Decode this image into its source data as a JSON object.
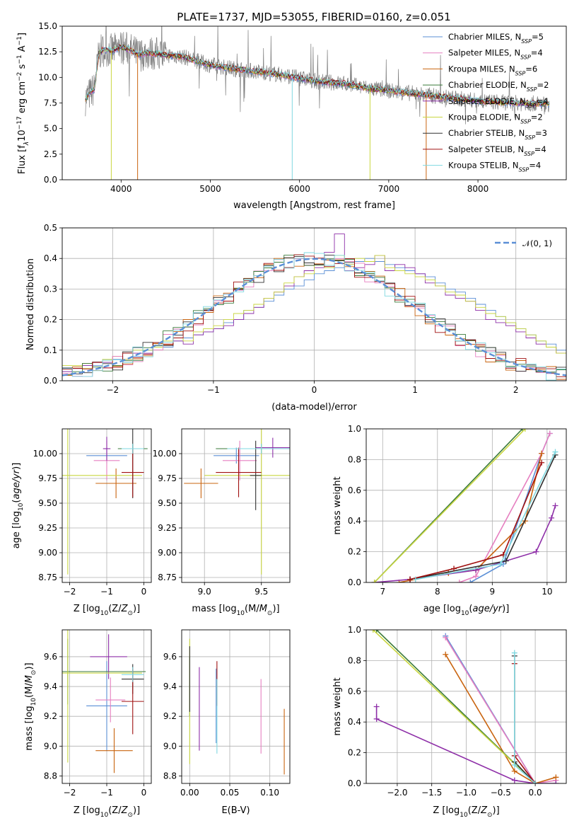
{
  "figure": {
    "title": "PLATE=1737, MJD=53055, FIBERID=0160, z=0.051",
    "spectrum_xlabel": "wavelength [Angstrom, rest frame]",
    "residual_xlabel": "(data-model)/error",
    "residual_ylabel": "Normed distribution"
  },
  "colors": {
    "data": "#7f7f7f",
    "normal_curve": "#5b8fd6",
    "grid": "#b0b0b0"
  },
  "chart_data": [
    {
      "type": "line",
      "id": "spectrum",
      "title": "PLATE=1737, MJD=53055, FIBERID=0160, z=0.051",
      "xlabel": "wavelength [Angstrom, rest frame]",
      "xlim": [
        3340,
        8990
      ],
      "ylim": [
        0,
        15
      ],
      "xticks": [
        4000,
        5000,
        6000,
        7000,
        8000
      ],
      "yticks": [
        "0.0",
        "2.5",
        "5.0",
        "7.5",
        "10.0",
        "12.5",
        "15.0"
      ],
      "grid": false,
      "legend_position": "top-right",
      "series": [
        {
          "name": "Chabrier MILES, N",
          "nssp": "5",
          "color": "#5b8fd6"
        },
        {
          "name": "Salpeter MILES, N",
          "nssp": "4",
          "color": "#e67fc0"
        },
        {
          "name": "Kroupa MILES, N",
          "nssp": "6",
          "color": "#c9640f"
        },
        {
          "name": "Chabrier ELODIE, N",
          "nssp": "2",
          "color": "#3a7a3a"
        },
        {
          "name": "Salpeter ELODIE, N",
          "nssp": "4",
          "color": "#8e2fa8"
        },
        {
          "name": "Kroupa ELODIE, N",
          "nssp": "2",
          "color": "#c9d640"
        },
        {
          "name": "Chabrier STELIB, N",
          "nssp": "3",
          "color": "#303030"
        },
        {
          "name": "Salpeter STELIB, N",
          "nssp": "4",
          "color": "#a01010"
        },
        {
          "name": "Kroupa STELIB, N",
          "nssp": "4",
          "color": "#7fd8e0"
        }
      ],
      "envelope": {
        "x": [
          3600,
          3700,
          3750,
          3800,
          3900,
          4000,
          4100,
          4200,
          4300,
          4400,
          4500,
          4700,
          5000,
          5300,
          5600,
          5900,
          6200,
          6500,
          6800,
          7000,
          7300,
          7600,
          8000,
          8400,
          8800
        ],
        "y": [
          7.9,
          8.9,
          12.3,
          12.7,
          12.6,
          13.0,
          12.7,
          12.2,
          12.4,
          12.3,
          12.2,
          12.0,
          11.2,
          10.8,
          10.5,
          10.1,
          9.6,
          9.4,
          8.9,
          8.7,
          8.4,
          8.1,
          7.7,
          7.5,
          7.4
        ]
      },
      "dips": [
        {
          "x": 3890,
          "y": 0.0
        },
        {
          "x": 4185,
          "y": 0.0
        },
        {
          "x": 5918,
          "y": 0.0
        },
        {
          "x": 6790,
          "y": 0.0
        },
        {
          "x": 7420,
          "y": 0.0
        }
      ]
    },
    {
      "type": "line",
      "id": "residuals",
      "xlabel": "(data-model)/error",
      "ylabel": "Normed distribution",
      "xlim": [
        -2.5,
        2.5
      ],
      "ylim": [
        0,
        0.5
      ],
      "xticks": [
        "−2",
        "−1",
        "0",
        "1",
        "2"
      ],
      "yticks": [
        "0.0",
        "0.1",
        "0.2",
        "0.3",
        "0.4",
        "0.5"
      ],
      "grid": true,
      "legend_position": "top-right",
      "legend_label": "𝒩(0, 1)",
      "normal_curve": {
        "mu": 0,
        "sigma": 1
      },
      "histogram_bin_width": 0.1,
      "histograms": [
        {
          "color": "#5b8fd6",
          "values": [
            0.04,
            0.04,
            0.05,
            0.05,
            0.06,
            0.07,
            0.06,
            0.08,
            0.1,
            0.11,
            0.11,
            0.13,
            0.14,
            0.15,
            0.16,
            0.17,
            0.19,
            0.2,
            0.23,
            0.24,
            0.26,
            0.28,
            0.3,
            0.31,
            0.33,
            0.35,
            0.36,
            0.37,
            0.38,
            0.39,
            0.4,
            0.39,
            0.38,
            0.37,
            0.36,
            0.35,
            0.34,
            0.32,
            0.3,
            0.29,
            0.27,
            0.25,
            0.23,
            0.21,
            0.19,
            0.17,
            0.15,
            0.13,
            0.12,
            0.1
          ]
        },
        {
          "color": "#8e2fa8",
          "values": [
            0.03,
            0.04,
            0.05,
            0.06,
            0.06,
            0.08,
            0.07,
            0.09,
            0.09,
            0.11,
            0.12,
            0.13,
            0.12,
            0.15,
            0.16,
            0.17,
            0.18,
            0.2,
            0.22,
            0.24,
            0.27,
            0.29,
            0.31,
            0.34,
            0.36,
            0.37,
            0.42,
            0.48,
            0.36,
            0.37,
            0.38,
            0.41,
            0.36,
            0.38,
            0.37,
            0.35,
            0.32,
            0.31,
            0.28,
            0.27,
            0.26,
            0.23,
            0.2,
            0.19,
            0.18,
            0.16,
            0.14,
            0.12,
            0.11,
            0.09
          ]
        },
        {
          "color": "#c9d640",
          "values": [
            0.05,
            0.05,
            0.04,
            0.06,
            0.07,
            0.08,
            0.07,
            0.1,
            0.1,
            0.11,
            0.13,
            0.14,
            0.13,
            0.16,
            0.17,
            0.18,
            0.2,
            0.22,
            0.23,
            0.25,
            0.27,
            0.29,
            0.32,
            0.34,
            0.35,
            0.38,
            0.37,
            0.41,
            0.38,
            0.4,
            0.39,
            0.41,
            0.37,
            0.36,
            0.35,
            0.34,
            0.33,
            0.31,
            0.29,
            0.28,
            0.26,
            0.24,
            0.22,
            0.21,
            0.19,
            0.17,
            0.15,
            0.13,
            0.11,
            0.09
          ]
        }
      ]
    },
    {
      "type": "scatter",
      "id": "age_vs_Z",
      "xlabel": "Z [log10(Z/Z⊙)]",
      "ylabel": "age  [log10(age/yr)]",
      "xlim": [
        -2.2,
        0.2
      ],
      "ylim": [
        8.7,
        10.25
      ],
      "xticks": [
        "−2",
        "−1",
        "0"
      ],
      "yticks": [
        "8.75",
        "9.00",
        "9.25",
        "9.50",
        "9.75",
        "10.00"
      ],
      "grid": true,
      "points": [
        {
          "x": -1.0,
          "y": 9.98,
          "xerr": 0.55,
          "yerr": 0.08,
          "color": "#5b8fd6"
        },
        {
          "x": -1.0,
          "y": 9.93,
          "xerr": 0.35,
          "yerr": 0.2,
          "color": "#e67fc0"
        },
        {
          "x": -0.75,
          "y": 9.7,
          "xerr": 0.55,
          "yerr": 0.15,
          "color": "#c9640f"
        },
        {
          "x": -0.3,
          "y": 10.05,
          "xerr": 0.4,
          "yerr": 0.05,
          "color": "#3a7a3a"
        },
        {
          "x": -1.0,
          "y": 10.05,
          "xerr": 0.1,
          "yerr": 0.12,
          "color": "#8e2fa8"
        },
        {
          "x": -2.05,
          "y": 9.78,
          "xerr": 2.0,
          "yerr": 1.0,
          "color": "#c9d640"
        },
        {
          "x": -0.3,
          "y": 10.05,
          "xerr": 0.3,
          "yerr": 0.5,
          "color": "#303030"
        },
        {
          "x": -0.3,
          "y": 9.81,
          "xerr": 0.3,
          "yerr": 0.25,
          "color": "#a01010"
        },
        {
          "x": -0.3,
          "y": 10.05,
          "xerr": 0.3,
          "yerr": 0.05,
          "color": "#7fd8e0"
        }
      ]
    },
    {
      "type": "scatter",
      "id": "age_vs_mass",
      "xlabel": "mass [log10(M/M⊙)]",
      "xlim": [
        8.8,
        9.75
      ],
      "ylim": [
        8.7,
        10.25
      ],
      "xticks": [
        "9.0",
        "9.5"
      ],
      "yticks": [
        "8.75",
        "9.00",
        "9.25",
        "9.50",
        "9.75",
        "10.00"
      ],
      "grid": true,
      "points": [
        {
          "x": 9.28,
          "y": 9.98,
          "xerr": 0.2,
          "yerr": 0.08,
          "color": "#5b8fd6"
        },
        {
          "x": 9.31,
          "y": 9.93,
          "xerr": 0.15,
          "yerr": 0.2,
          "color": "#e67fc0"
        },
        {
          "x": 8.97,
          "y": 9.7,
          "xerr": 0.15,
          "yerr": 0.15,
          "color": "#c9640f"
        },
        {
          "x": 9.5,
          "y": 10.05,
          "xerr": 0.4,
          "yerr": 0.05,
          "color": "#3a7a3a"
        },
        {
          "x": 9.6,
          "y": 10.06,
          "xerr": 0.15,
          "yerr": 0.1,
          "color": "#8e2fa8"
        },
        {
          "x": 9.5,
          "y": 9.78,
          "xerr": 0.5,
          "yerr": 1.0,
          "color": "#c9d640"
        },
        {
          "x": 9.45,
          "y": 9.78,
          "xerr": 0.05,
          "yerr": 0.35,
          "color": "#303030"
        },
        {
          "x": 9.3,
          "y": 9.81,
          "xerr": 0.2,
          "yerr": 0.25,
          "color": "#a01010"
        },
        {
          "x": 9.5,
          "y": 10.05,
          "xerr": 0.3,
          "yerr": 0.05,
          "color": "#7fd8e0"
        }
      ]
    },
    {
      "type": "line",
      "id": "mass_weight_vs_age",
      "xlabel": "age  [log10(age/yr)]",
      "ylabel": "mass weight",
      "xlim": [
        6.7,
        10.35
      ],
      "ylim": [
        0,
        1
      ],
      "xticks": [
        "7",
        "8",
        "9",
        "10"
      ],
      "yticks": [
        "0.0",
        "0.2",
        "0.4",
        "0.6",
        "0.8",
        "1.0"
      ],
      "grid": true,
      "series": [
        {
          "color": "#5b8fd6",
          "x": [
            8.6,
            9.2,
            9.9,
            10.05
          ],
          "y": [
            0.0,
            0.12,
            0.84,
            0.97
          ]
        },
        {
          "color": "#e67fc0",
          "x": [
            8.4,
            8.7,
            9.9,
            10.05
          ],
          "y": [
            0.0,
            0.04,
            0.84,
            0.97
          ]
        },
        {
          "color": "#c9640f",
          "x": [
            7.3,
            8.2,
            8.7,
            9.6,
            9.9
          ],
          "y": [
            0.0,
            0.06,
            0.08,
            0.4,
            0.84
          ]
        },
        {
          "color": "#3a7a3a",
          "x": [
            6.85,
            9.55
          ],
          "y": [
            0.0,
            1.0
          ]
        },
        {
          "color": "#8e2fa8",
          "x": [
            6.85,
            7.5,
            8.7,
            9.8,
            10.08,
            10.15
          ],
          "y": [
            0.0,
            0.02,
            0.08,
            0.2,
            0.42,
            0.5
          ]
        },
        {
          "color": "#c9d640",
          "x": [
            6.85,
            9.6
          ],
          "y": [
            0.0,
            1.0
          ]
        },
        {
          "color": "#303030",
          "x": [
            7.5,
            9.25,
            10.15
          ],
          "y": [
            0.02,
            0.14,
            0.83
          ]
        },
        {
          "color": "#a01010",
          "x": [
            7.5,
            8.3,
            9.2,
            9.9
          ],
          "y": [
            0.02,
            0.09,
            0.18,
            0.78
          ]
        },
        {
          "color": "#7fd8e0",
          "x": [
            7.6,
            9.15,
            10.15
          ],
          "y": [
            0.02,
            0.12,
            0.85
          ]
        }
      ]
    },
    {
      "type": "scatter",
      "id": "mass_vs_Z",
      "xlabel": "Z [log10(Z/Z⊙)]",
      "ylabel": "mass [log10(M/M⊙)]",
      "xlim": [
        -2.2,
        0.2
      ],
      "ylim": [
        8.75,
        9.78
      ],
      "xticks": [
        "−2",
        "−1",
        "0"
      ],
      "yticks": [
        "8.8",
        "9.0",
        "9.2",
        "9.4",
        "9.6"
      ],
      "grid": true,
      "points": [
        {
          "x": -1.0,
          "y": 9.27,
          "xerr": 0.55,
          "yerr": 0.3,
          "color": "#5b8fd6"
        },
        {
          "x": -0.9,
          "y": 9.31,
          "xerr": 0.4,
          "yerr": 0.15,
          "color": "#e67fc0"
        },
        {
          "x": -0.8,
          "y": 8.97,
          "xerr": 0.5,
          "yerr": 0.15,
          "color": "#c9640f"
        },
        {
          "x": -2.05,
          "y": 9.5,
          "xerr": 2.1,
          "yerr": 0.22,
          "color": "#3a7a3a"
        },
        {
          "x": -0.95,
          "y": 9.6,
          "xerr": 0.5,
          "yerr": 0.15,
          "color": "#8e2fa8"
        },
        {
          "x": -2.05,
          "y": 9.49,
          "xerr": 2.0,
          "yerr": 0.6,
          "color": "#c9d640"
        },
        {
          "x": -0.3,
          "y": 9.45,
          "xerr": 0.3,
          "yerr": 0.1,
          "color": "#303030"
        },
        {
          "x": -0.3,
          "y": 9.3,
          "xerr": 0.3,
          "yerr": 0.22,
          "color": "#a01010"
        },
        {
          "x": -0.3,
          "y": 9.48,
          "xerr": 0.3,
          "yerr": 0.05,
          "color": "#7fd8e0"
        }
      ]
    },
    {
      "type": "scatter",
      "id": "mass_vs_ebv",
      "xlabel": "E(B-V)",
      "xlim": [
        -0.01,
        0.125
      ],
      "ylim": [
        8.75,
        9.78
      ],
      "xticks": [
        "0.00",
        "0.05",
        "0.10"
      ],
      "yticks": [
        "8.8",
        "9.0",
        "9.2",
        "9.4",
        "9.6"
      ],
      "grid": true,
      "points": [
        {
          "x": 0.033,
          "y": 9.27,
          "yerr": 0.25,
          "color": "#5b8fd6"
        },
        {
          "x": 0.089,
          "y": 9.2,
          "yerr": 0.25,
          "color": "#e67fc0"
        },
        {
          "x": 0.118,
          "y": 9.03,
          "yerr": 0.22,
          "color": "#c9640f"
        },
        {
          "x": 0.0,
          "y": 9.4,
          "yerr": 0.2,
          "color": "#3a7a3a"
        },
        {
          "x": 0.012,
          "y": 9.25,
          "yerr": 0.28,
          "color": "#8e2fa8"
        },
        {
          "x": 0.0,
          "y": 9.3,
          "yerr": 0.42,
          "color": "#c9d640"
        },
        {
          "x": 0.0,
          "y": 9.45,
          "yerr": 0.22,
          "color": "#303030"
        },
        {
          "x": 0.034,
          "y": 9.42,
          "yerr": 0.15,
          "color": "#a01010"
        },
        {
          "x": 0.034,
          "y": 9.2,
          "yerr": 0.25,
          "color": "#7fd8e0"
        }
      ]
    },
    {
      "type": "line",
      "id": "mass_weight_vs_Z",
      "xlabel": "Z [log10(Z/Z⊙)]",
      "ylabel": "mass weight",
      "xlim": [
        -2.45,
        0.45
      ],
      "ylim": [
        0,
        1
      ],
      "xticks": [
        "−2.0",
        "−1.5",
        "−1.0",
        "−0.5",
        "0.0"
      ],
      "yticks": [
        "0.0",
        "0.2",
        "0.4",
        "0.6",
        "0.8",
        "1.0"
      ],
      "grid": true,
      "series": [
        {
          "color": "#5b8fd6",
          "x": [
            -1.3,
            0.0
          ],
          "y": [
            0.96,
            0.0
          ]
        },
        {
          "color": "#e67fc0",
          "x": [
            -1.3,
            0.0,
            0.3
          ],
          "y": [
            0.95,
            0.0,
            0.02
          ]
        },
        {
          "color": "#c9640f",
          "x": [
            -1.3,
            -0.3,
            0.0,
            0.3
          ],
          "y": [
            0.84,
            0.08,
            0.0,
            0.04
          ]
        },
        {
          "color": "#3a7a3a",
          "x": [
            -2.3,
            0.0
          ],
          "y": [
            1.0,
            0.0
          ]
        },
        {
          "color": "#8e2fa8",
          "x": [
            -2.3,
            -2.3,
            -0.3,
            0.0,
            0.3
          ],
          "y": [
            0.5,
            0.42,
            0.02,
            0.0,
            0.0
          ]
        },
        {
          "color": "#c9d640",
          "x": [
            -2.35,
            0.0
          ],
          "y": [
            1.0,
            0.0
          ]
        },
        {
          "color": "#303030",
          "x": [
            -0.3,
            -0.3,
            0.0
          ],
          "y": [
            0.83,
            0.14,
            0.0
          ]
        },
        {
          "color": "#a01010",
          "x": [
            -0.3,
            -0.3,
            0.0
          ],
          "y": [
            0.78,
            0.18,
            0.0
          ]
        },
        {
          "color": "#7fd8e0",
          "x": [
            -0.3,
            -0.3,
            0.0
          ],
          "y": [
            0.85,
            0.12,
            0.0
          ]
        }
      ]
    }
  ]
}
